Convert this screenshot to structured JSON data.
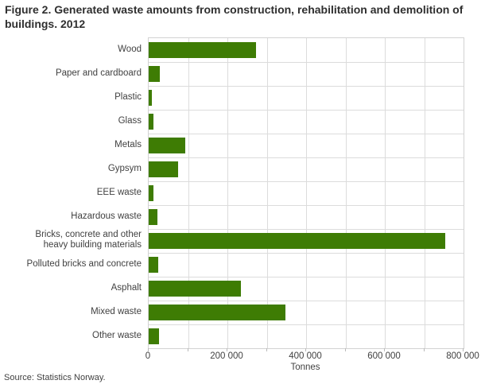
{
  "title": "Figure 2. Generated waste amounts from construction, rehabilitation and demolition of buildings. 2012",
  "source": "Source: Statistics Norway.",
  "colors": {
    "bar": "#3e7c04",
    "grid": "#dcdcdc",
    "plot_border": "#d2d2d2",
    "text": "#414141",
    "title_text": "#2f2f2f"
  },
  "chart_data": {
    "type": "bar",
    "orientation": "horizontal",
    "title": "Figure 2. Generated waste amounts from construction, rehabilitation and demolition of buildings. 2012",
    "categories": [
      "Wood",
      "Paper and cardboard",
      "Plastic",
      "Glass",
      "Metals",
      "Gypsym",
      "EEE waste",
      "Hazardous waste",
      "Bricks, concrete and other\nheavy building materials",
      "Polluted bricks and concrete",
      "Asphalt",
      "Mixed waste",
      "Other waste"
    ],
    "values": [
      272000,
      29000,
      7000,
      12000,
      92000,
      74000,
      13000,
      22000,
      753000,
      24000,
      234000,
      347000,
      27000
    ],
    "xlabel": "Tonnes",
    "ylabel": "",
    "xlim": [
      0,
      800000
    ],
    "xticks": [
      0,
      100000,
      200000,
      300000,
      400000,
      500000,
      600000,
      700000,
      800000
    ],
    "xtick_labels": [
      "0",
      "",
      "200 000",
      "",
      "400 000",
      "",
      "600 000",
      "",
      "800 000"
    ],
    "grid": true,
    "legend": false,
    "bar_color": "#3e7c04"
  }
}
